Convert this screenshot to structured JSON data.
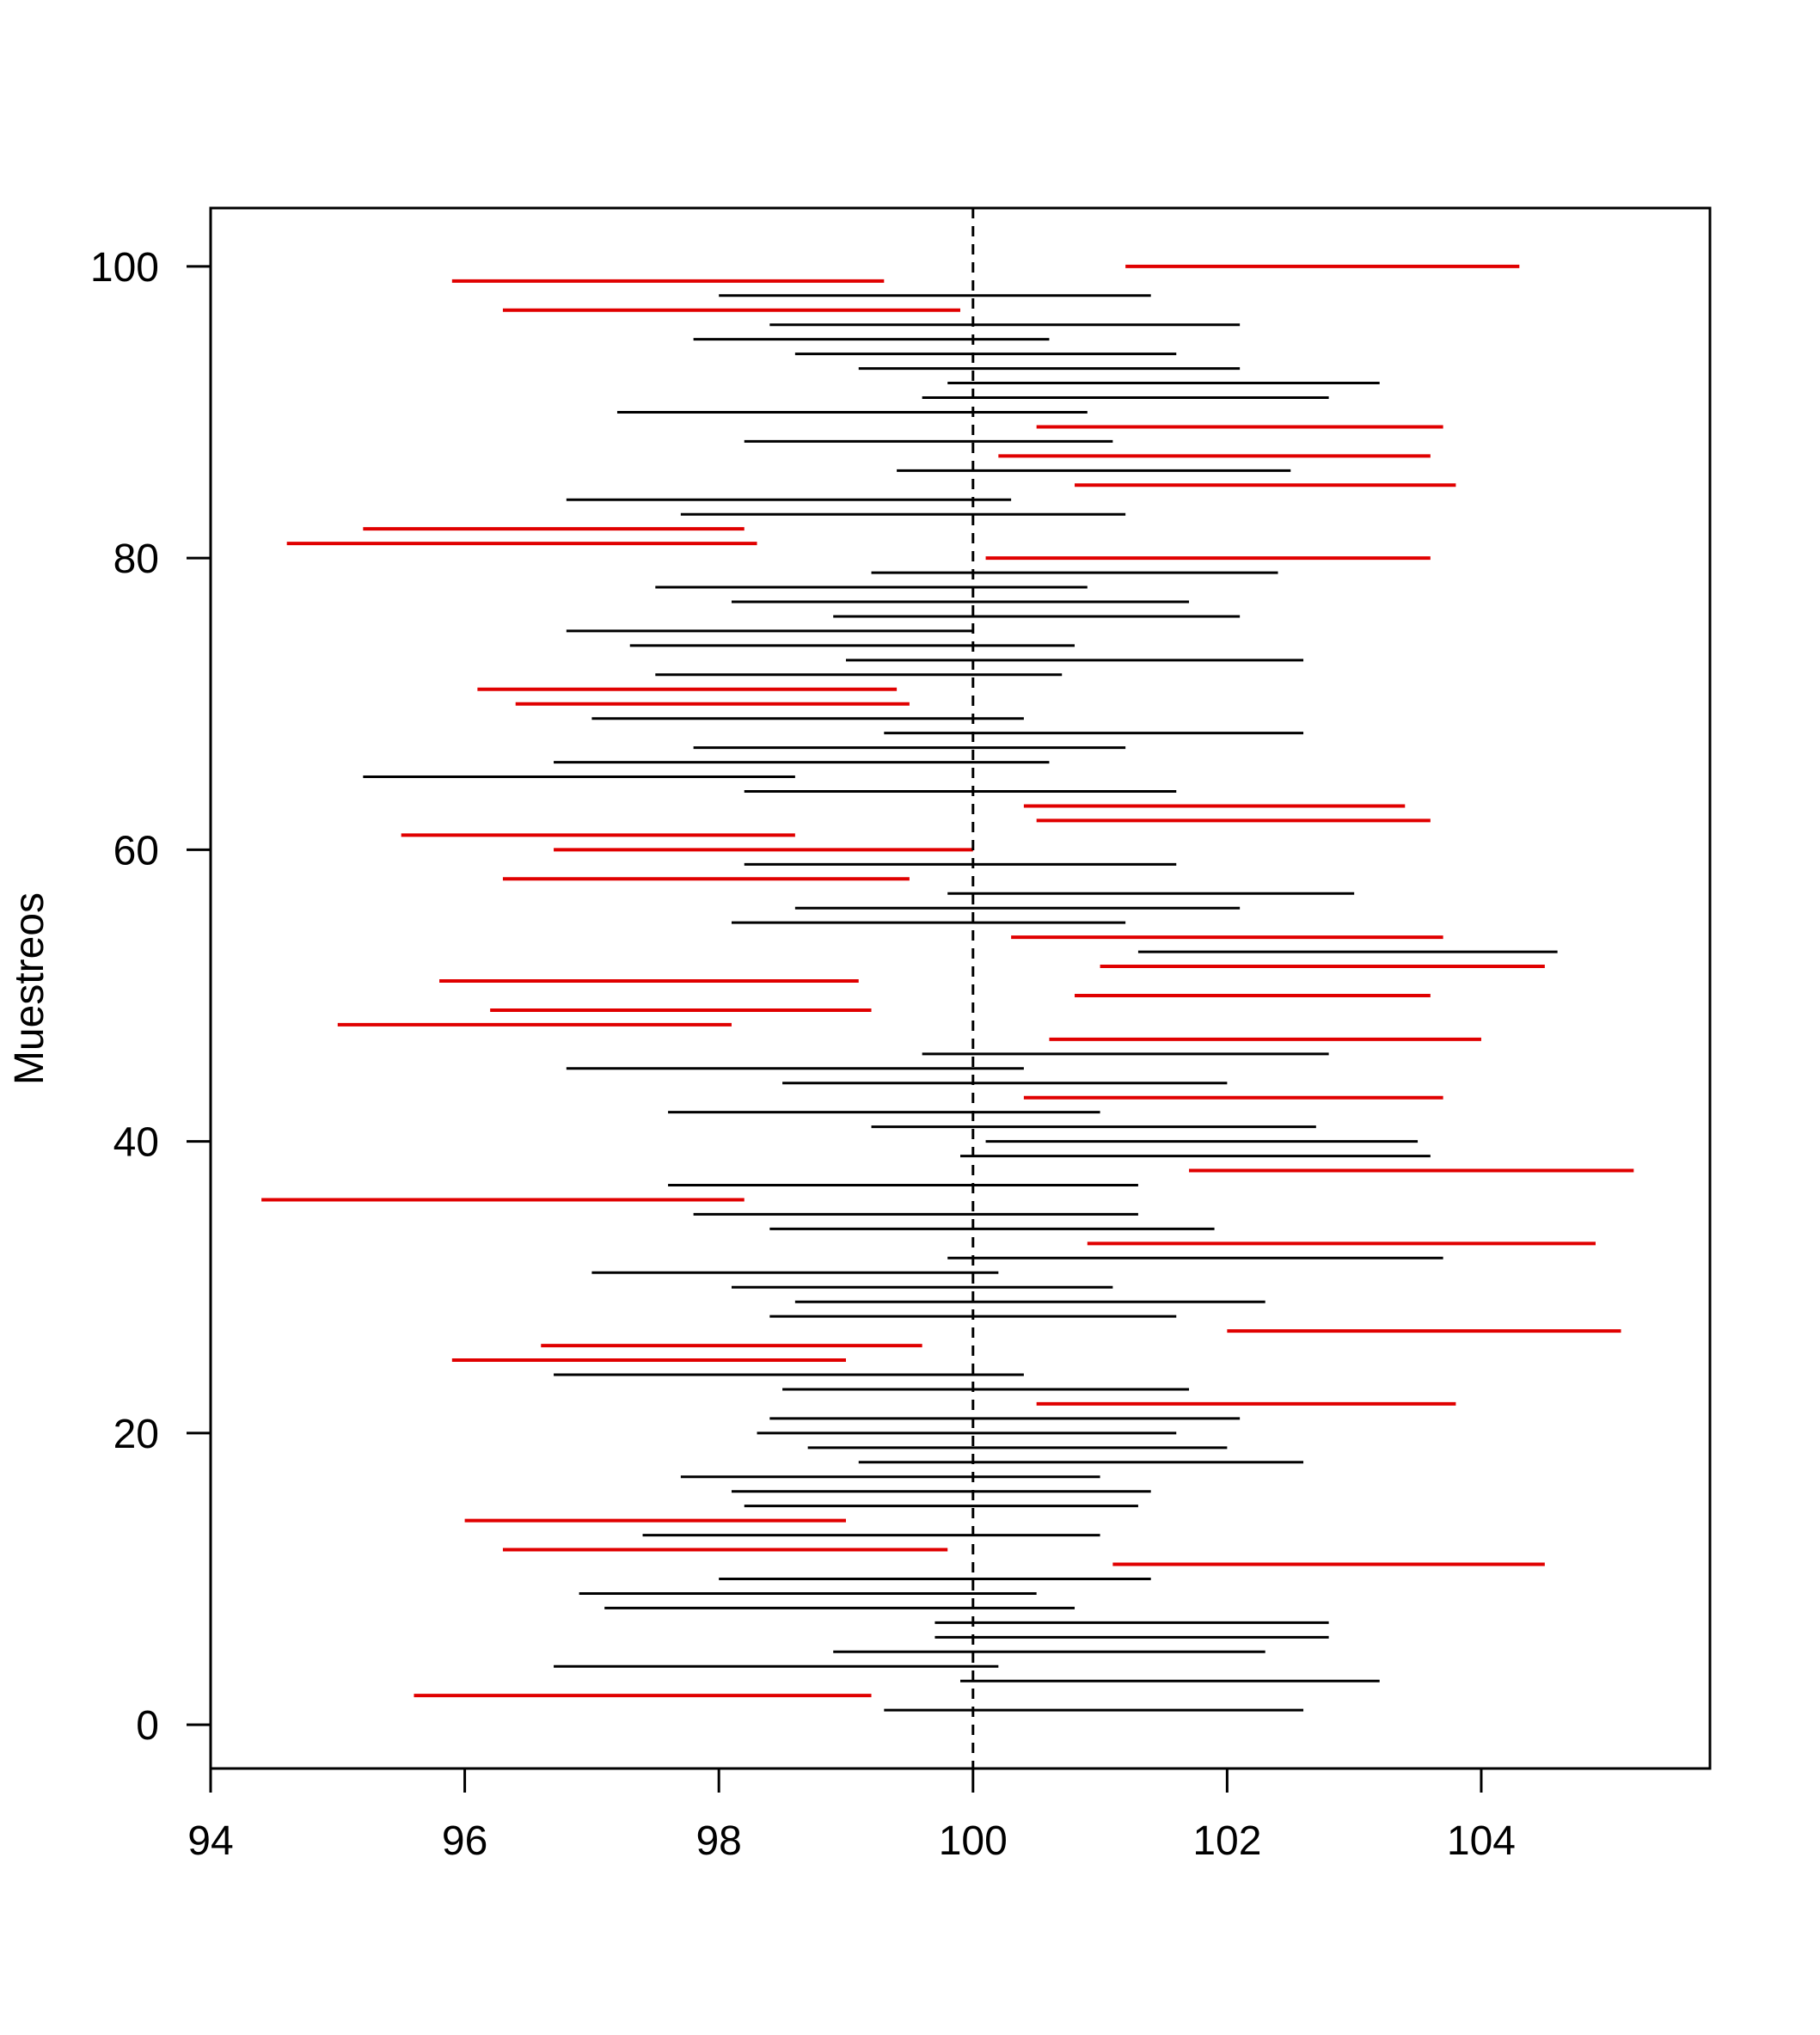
{
  "chart_data": {
    "type": "interval",
    "title": "",
    "xlabel": "",
    "ylabel": "Muestreos",
    "xlim": [
      94,
      105.8
    ],
    "ylim": [
      -3,
      104
    ],
    "x_ticks": [
      "94",
      "96",
      "98",
      "100",
      "102",
      "104"
    ],
    "y_ticks": [
      "0",
      "20",
      "40",
      "60",
      "80",
      "100"
    ],
    "reference_line": {
      "x": 100,
      "style": "dashed"
    },
    "colors": {
      "covers": "#000000",
      "misses": "#e00000",
      "axis": "#000000"
    },
    "series": [
      {
        "name": "",
        "covers": [
          [
            1,
            99.3,
            102.6
          ],
          [
            3,
            99.9,
            103.2
          ],
          [
            4,
            96.7,
            100.2
          ],
          [
            5,
            98.9,
            102.3
          ],
          [
            6,
            99.7,
            102.8
          ],
          [
            7,
            99.7,
            102.8
          ],
          [
            8,
            97.1,
            100.8
          ],
          [
            9,
            96.9,
            100.5
          ],
          [
            10,
            98.0,
            101.4
          ],
          [
            13,
            97.4,
            101.0
          ],
          [
            15,
            98.2,
            101.3
          ],
          [
            16,
            98.1,
            101.4
          ],
          [
            17,
            97.7,
            101.0
          ],
          [
            18,
            99.1,
            102.6
          ],
          [
            19,
            98.7,
            102.0
          ],
          [
            20,
            98.3,
            101.6
          ],
          [
            21,
            98.4,
            102.1
          ],
          [
            23,
            98.5,
            101.7
          ],
          [
            24,
            96.7,
            100.4
          ],
          [
            28,
            98.4,
            101.6
          ],
          [
            29,
            98.6,
            102.3
          ],
          [
            30,
            98.1,
            101.1
          ],
          [
            31,
            97.0,
            100.2
          ],
          [
            32,
            99.8,
            103.7
          ],
          [
            34,
            98.4,
            101.9
          ],
          [
            35,
            97.8,
            101.3
          ],
          [
            37,
            97.6,
            101.3
          ],
          [
            39,
            99.9,
            103.6
          ],
          [
            40,
            100.1,
            103.5
          ],
          [
            41,
            99.2,
            102.7
          ],
          [
            42,
            97.6,
            101.0
          ],
          [
            44,
            98.5,
            102.0
          ],
          [
            45,
            96.8,
            100.4
          ],
          [
            46,
            99.6,
            102.8
          ],
          [
            53,
            101.3,
            104.6
          ],
          [
            55,
            98.1,
            101.2
          ],
          [
            56,
            98.6,
            102.1
          ],
          [
            57,
            99.8,
            103.0
          ],
          [
            59,
            98.2,
            101.6
          ],
          [
            64,
            98.2,
            101.6
          ],
          [
            65,
            95.2,
            98.6
          ],
          [
            66,
            96.7,
            100.6
          ],
          [
            67,
            97.8,
            101.2
          ],
          [
            68,
            99.3,
            102.6
          ],
          [
            69,
            97.0,
            100.4
          ],
          [
            72,
            97.5,
            100.7
          ],
          [
            73,
            99.0,
            102.6
          ],
          [
            74,
            97.3,
            100.8
          ],
          [
            75,
            96.8,
            100.0
          ],
          [
            76,
            98.9,
            102.1
          ],
          [
            77,
            98.1,
            101.7
          ],
          [
            78,
            97.5,
            100.9
          ],
          [
            79,
            99.2,
            102.4
          ],
          [
            83,
            97.7,
            101.2
          ],
          [
            84,
            96.8,
            100.3
          ],
          [
            86,
            99.4,
            102.5
          ],
          [
            88,
            98.2,
            101.1
          ],
          [
            90,
            97.2,
            100.9
          ],
          [
            91,
            99.6,
            102.8
          ],
          [
            92,
            99.8,
            103.2
          ],
          [
            93,
            99.1,
            102.1
          ],
          [
            94,
            98.6,
            101.6
          ],
          [
            95,
            97.8,
            100.6
          ],
          [
            96,
            98.4,
            102.1
          ],
          [
            98,
            98.0,
            101.4
          ]
        ]
      },
      {
        "name": "",
        "misses": [
          [
            2,
            95.6,
            99.2
          ],
          [
            11,
            101.1,
            104.5
          ],
          [
            12,
            96.3,
            99.8
          ],
          [
            14,
            96.0,
            99.0
          ],
          [
            22,
            100.5,
            103.8
          ],
          [
            25,
            95.9,
            99.0
          ],
          [
            26,
            96.6,
            99.6
          ],
          [
            27,
            102.0,
            105.1
          ],
          [
            33,
            100.9,
            104.9
          ],
          [
            36,
            94.4,
            98.2
          ],
          [
            38,
            101.7,
            105.2
          ],
          [
            43,
            100.4,
            103.7
          ],
          [
            47,
            100.6,
            104.0
          ],
          [
            48,
            95.0,
            98.1
          ],
          [
            49,
            96.2,
            99.2
          ],
          [
            50,
            100.8,
            103.6
          ],
          [
            51,
            95.8,
            99.1
          ],
          [
            52,
            101.0,
            104.5
          ],
          [
            54,
            100.3,
            103.7
          ],
          [
            58,
            96.3,
            99.5
          ],
          [
            60,
            96.7,
            100.0
          ],
          [
            61,
            95.5,
            98.6
          ],
          [
            62,
            100.5,
            103.6
          ],
          [
            63,
            100.4,
            103.4
          ],
          [
            70,
            96.4,
            99.5
          ],
          [
            71,
            96.1,
            99.4
          ],
          [
            80,
            100.1,
            103.6
          ],
          [
            81,
            94.6,
            98.3
          ],
          [
            82,
            95.2,
            98.2
          ],
          [
            85,
            100.8,
            103.8
          ],
          [
            87,
            100.2,
            103.6
          ],
          [
            89,
            100.5,
            103.7
          ],
          [
            97,
            96.3,
            99.9
          ],
          [
            99,
            95.9,
            99.3
          ],
          [
            100,
            101.2,
            104.3
          ]
        ]
      }
    ]
  }
}
